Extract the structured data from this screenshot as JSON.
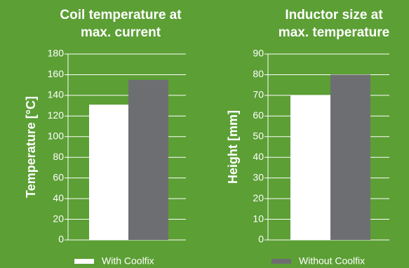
{
  "chart_data": [
    {
      "type": "bar",
      "title": [
        "Coil temperature at",
        "max. current"
      ],
      "ylabel": "Temperature [°C]",
      "series": [
        {
          "name": "With Coolfix",
          "color": "#ffffff",
          "values": [
            131
          ]
        },
        {
          "name": "Without Coolfix",
          "color": "#6d6e71",
          "values": [
            155
          ]
        }
      ],
      "ylim": [
        0,
        180
      ],
      "yticks": [
        0,
        20,
        40,
        60,
        80,
        100,
        120,
        140,
        160,
        180
      ],
      "grid": true
    },
    {
      "type": "bar",
      "title": [
        "Inductor size at",
        "max. temperature"
      ],
      "ylabel": "Height [mm]",
      "series": [
        {
          "name": "With Coolfix",
          "color": "#ffffff",
          "values": [
            70
          ]
        },
        {
          "name": "Without Coolfix",
          "color": "#6d6e71",
          "values": [
            80
          ]
        }
      ],
      "ylim": [
        0,
        90
      ],
      "yticks": [
        0,
        10,
        20,
        30,
        40,
        50,
        60,
        70,
        80,
        90
      ],
      "grid": true
    }
  ]
}
